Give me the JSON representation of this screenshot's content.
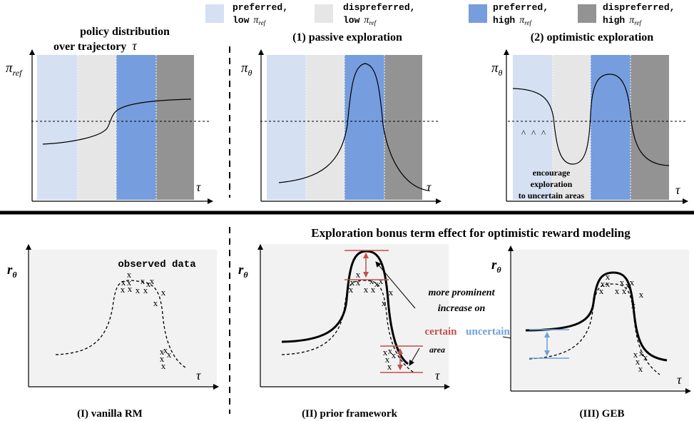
{
  "colors": {
    "preferred_low": "#d5e0f3",
    "dispreferred_low": "#e6e6e6",
    "preferred_high": "#769ddd",
    "dispreferred_high": "#939393",
    "certain": "#c0504d",
    "uncertain": "#6fa0d8",
    "panel_bg": "#f2f2f2"
  },
  "legend": [
    {
      "line1": "preferred,",
      "line2_word": "low",
      "color_key": "preferred_low"
    },
    {
      "line1": "dispreferred,",
      "line2_word": "low",
      "color_key": "dispreferred_low"
    },
    {
      "line1": "preferred,",
      "line2_word": "high",
      "color_key": "preferred_high"
    },
    {
      "line1": "dispreferred,",
      "line2_word": "high",
      "color_key": "dispreferred_high"
    }
  ],
  "symbols": {
    "pi": "π",
    "ref": "ref",
    "theta": "θ",
    "tau": "τ",
    "r": "r",
    "x_mark": "x"
  },
  "top": {
    "panel0_title_line1": "policy distribution",
    "panel0_title_line2": "over trajectory",
    "panel1_title": "(1) passive exploration",
    "panel2_title": "(2) optimistic exploration",
    "annotation_lines": [
      "encourage",
      "exploration",
      "to uncertain areas"
    ],
    "caret": "^"
  },
  "bottom": {
    "heading": "Exploration bonus term effect for optimistic reward modeling",
    "observed_data": "observed data",
    "prominent_lines": [
      "more prominent",
      "increase on"
    ],
    "certain_word": "certain",
    "uncertain_word": "uncertain",
    "area_word": "area",
    "captions": [
      "(I) vanilla RM",
      "(II) prior framework",
      "(III) GEB"
    ]
  }
}
